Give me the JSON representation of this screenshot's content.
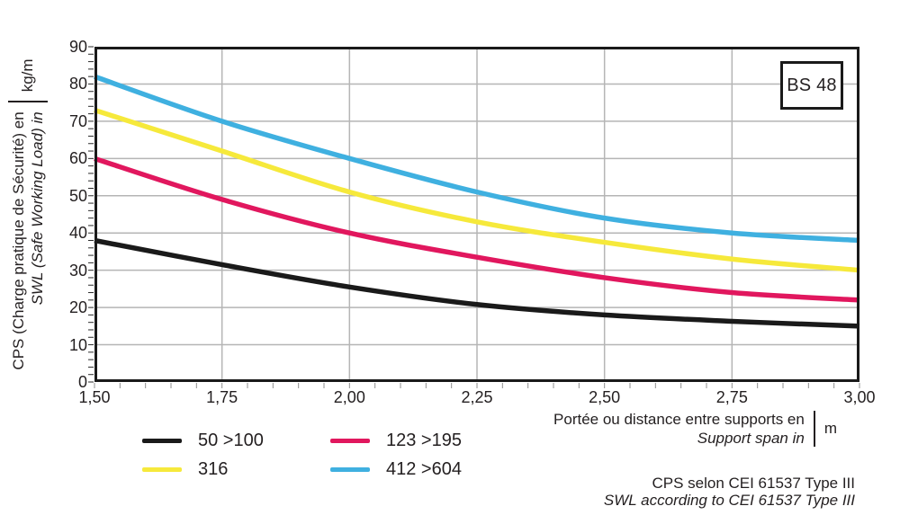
{
  "badge": "BS 48",
  "colors": {
    "black_series": "#1a1a1a",
    "red_series": "#e1175e",
    "yellow_series": "#f6e93b",
    "blue_series": "#3fb0e0",
    "grid": "#b5b5b5",
    "axis_border": "#1a1a1a",
    "text": "#231f20",
    "x_minor_tick": "#8f8f8f",
    "y_minor_tick": "#2b2b2b"
  },
  "y_axis": {
    "title_fr": "CPS (Charge pratique de Sécurité) en",
    "title_en": "SWL (Safe Working Load) in",
    "unit": "kg/m"
  },
  "x_axis": {
    "title_fr": "Portée ou distance entre supports en",
    "title_en": "Support span in",
    "unit": "m"
  },
  "footer": {
    "line_fr": "CPS selon CEI 61537 Type III",
    "line_en": "SWL according to CEI 61537 Type III"
  },
  "chart_data": {
    "type": "line",
    "title": "",
    "xlabel": "Portée ou distance entre supports en / Support span in (m)",
    "ylabel": "CPS (Charge pratique de Sécurité) en / SWL (Safe Working Load) in (kg/m)",
    "x": [
      1.5,
      1.75,
      2.0,
      2.25,
      2.5,
      2.75,
      3.0
    ],
    "x_tick_labels": [
      "1,50",
      "1,75",
      "2,00",
      "2,25",
      "2,50",
      "2,75",
      "3,00"
    ],
    "y_ticks": [
      0,
      10,
      20,
      30,
      40,
      50,
      60,
      70,
      80,
      90
    ],
    "xlim": [
      1.5,
      3.0
    ],
    "ylim": [
      0,
      90
    ],
    "x_minor_step": 0.05,
    "y_minor_step": 2,
    "grid": true,
    "legend_position": "bottom-left",
    "series": [
      {
        "name": "50 >100",
        "color": "#1a1a1a",
        "values": [
          38,
          31.5,
          25.5,
          20.8,
          18,
          16.3,
          15
        ]
      },
      {
        "name": "123 >195",
        "color": "#e1175e",
        "values": [
          60,
          49,
          40,
          33.5,
          28,
          24,
          22
        ]
      },
      {
        "name": "316",
        "color": "#f6e93b",
        "values": [
          73,
          62,
          51,
          43,
          37.5,
          33,
          30
        ]
      },
      {
        "name": "412 >604",
        "color": "#3fb0e0",
        "values": [
          82,
          70,
          60,
          51,
          44,
          40,
          38
        ]
      }
    ]
  }
}
